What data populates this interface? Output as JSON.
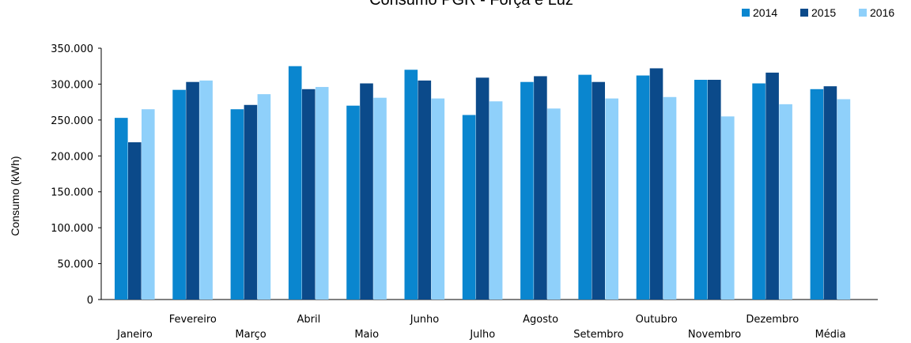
{
  "chart_data": {
    "type": "bar",
    "title": "Consumo PGR - Força e Luz",
    "xlabel": "",
    "ylabel": "Consumo (kWh)",
    "ylim": [
      0,
      350000
    ],
    "yticks": [
      0,
      50000,
      100000,
      150000,
      200000,
      250000,
      300000,
      350000
    ],
    "ytick_labels": [
      "0",
      "50.000",
      "100.000",
      "150.000",
      "200.000",
      "250.000",
      "300.000",
      "350.000"
    ],
    "grid": false,
    "legend_position": "top-right",
    "categories": [
      "Janeiro",
      "Fevereiro",
      "Março",
      "Abril",
      "Maio",
      "Junho",
      "Julho",
      "Agosto",
      "Setembro",
      "Outubro",
      "Novembro",
      "Dezembro",
      "Média"
    ],
    "series": [
      {
        "name": "2014",
        "color": "#0a86cf",
        "values": [
          253000,
          292000,
          265000,
          325000,
          270000,
          320000,
          257000,
          303000,
          313000,
          312000,
          306000,
          301000,
          293000
        ]
      },
      {
        "name": "2015",
        "color": "#0b4a8a",
        "values": [
          219000,
          303000,
          271000,
          293000,
          301000,
          305000,
          309000,
          311000,
          303000,
          322000,
          306000,
          316000,
          297000
        ]
      },
      {
        "name": "2016",
        "color": "#8fd0fa",
        "values": [
          265000,
          305000,
          286000,
          296000,
          281000,
          280000,
          276000,
          266000,
          280000,
          282000,
          255000,
          272000,
          279000
        ]
      }
    ]
  }
}
